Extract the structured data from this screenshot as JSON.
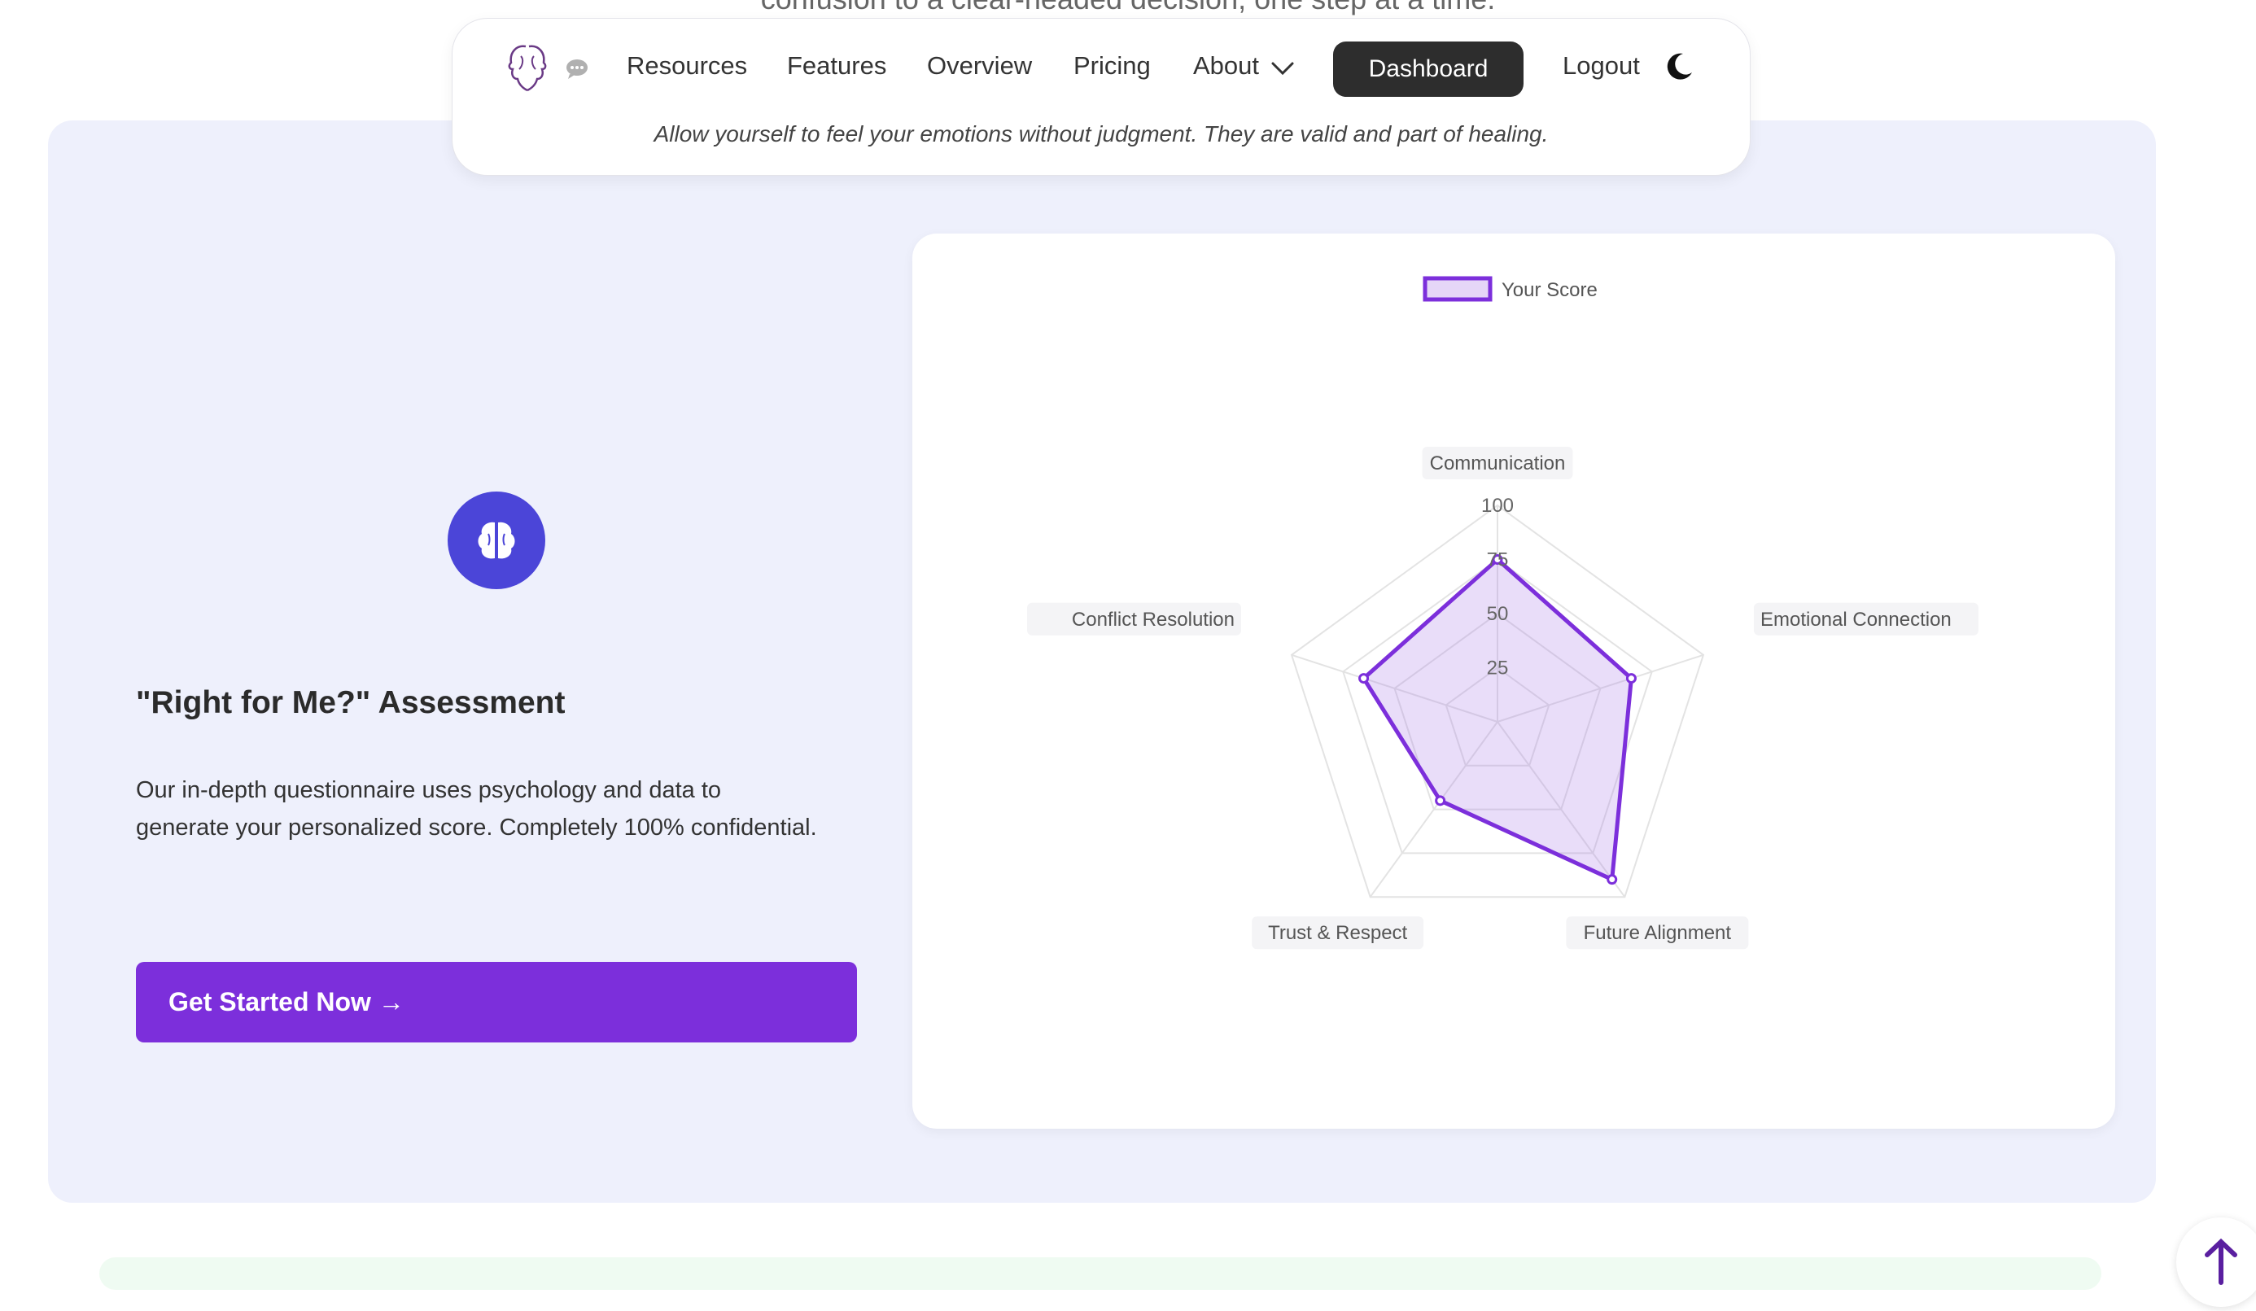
{
  "page": {
    "top_text": "confusion to a clear-headed decision, one step at a time."
  },
  "nav": {
    "logo_icon": "twin-head-logo",
    "chat_icon": "chat-bubble-icon",
    "links": [
      "Resources",
      "Features",
      "Overview",
      "Pricing",
      "About"
    ],
    "dashboard": "Dashboard",
    "logout": "Logout",
    "theme_icon": "moon-icon",
    "quote": "Allow yourself to feel your emotions without judgment. They are valid and part of healing."
  },
  "assessment": {
    "icon": "brain-icon",
    "title": "\"Right for Me?\" Assessment",
    "description": "Our in-depth questionnaire uses psychology and data to generate your personalized score. Completely 100% confidential.",
    "cta": "Get Started Now →"
  },
  "colors": {
    "accent": "#7c2fdb",
    "brain_circle": "#4b45d8",
    "section_bg": "#eef0fc"
  },
  "chart_data": {
    "type": "radar",
    "legend": [
      "Your Score"
    ],
    "legend_placement": "top",
    "categories": [
      "Communication",
      "Emotional Connection",
      "Future Alignment",
      "Trust & Respect",
      "Conflict Resolution"
    ],
    "series": [
      {
        "name": "Your Score",
        "values": [
          75,
          65,
          90,
          45,
          65
        ]
      }
    ],
    "r_ticks": [
      "25",
      "50",
      "75",
      "100"
    ],
    "rlim": [
      0,
      100
    ]
  }
}
